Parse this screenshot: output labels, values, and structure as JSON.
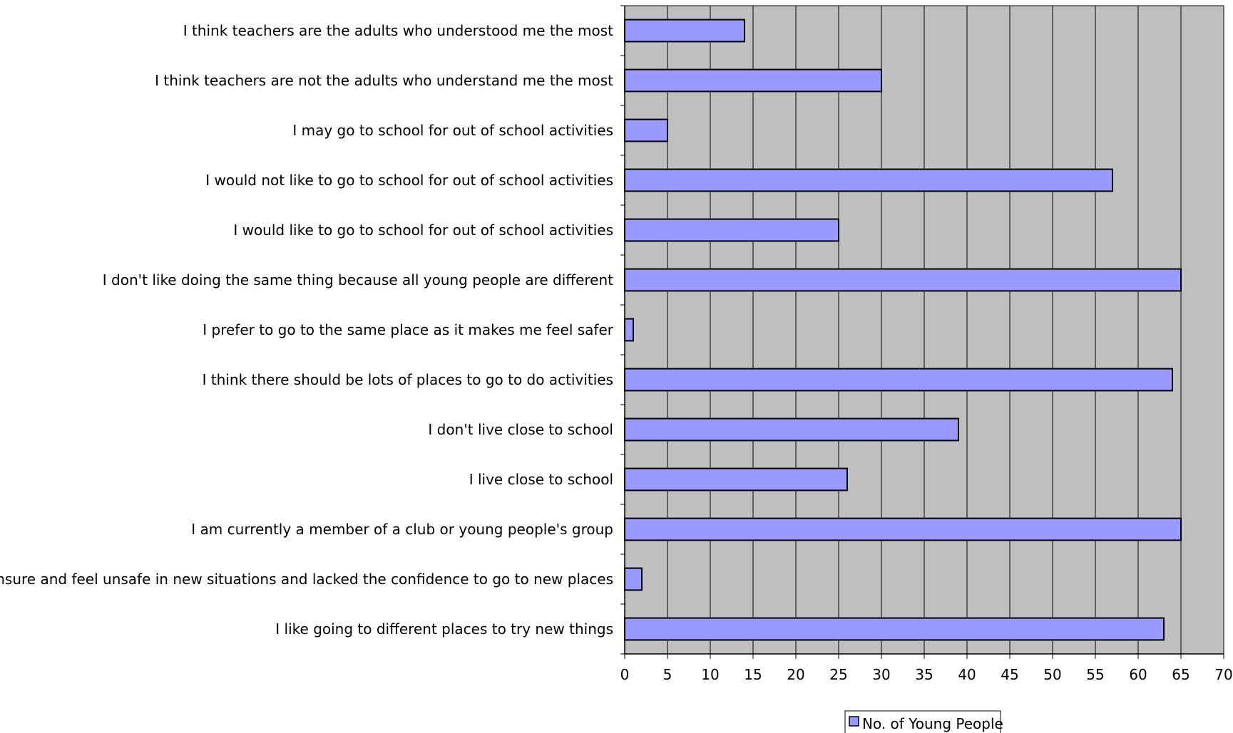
{
  "chart_data": {
    "type": "bar",
    "orientation": "horizontal",
    "title": "",
    "xlabel": "",
    "ylabel": "",
    "xlim": [
      0,
      70
    ],
    "x_ticks": [
      0,
      5,
      10,
      15,
      20,
      25,
      30,
      35,
      40,
      45,
      50,
      55,
      60,
      65,
      70
    ],
    "grid": true,
    "legend_position": "bottom",
    "categories": [
      "I think teachers are the adults who understood me the most",
      "I think teachers are not the adults who understand me the most",
      "I may go to school for out of school activities",
      "I would not like to go to school for out of school activities",
      "I would like to go to school for out of school activities",
      "I don't like doing the same thing because all young people are different",
      "I prefer to go to the same place as it makes me feel safer",
      "I think there should be lots of places to go to do activities",
      "I don't live close to school",
      "I live close to school",
      "I am currently a member of a club or young people's group",
      "I am unsure and feel unsafe in new situations and lacked the confidence to go to new places",
      "I like going to different places to try new things"
    ],
    "series": [
      {
        "name": "No. of Young People",
        "values": [
          14,
          30,
          5,
          57,
          25,
          65,
          1,
          64,
          39,
          26,
          65,
          2,
          63
        ]
      }
    ],
    "colors": {
      "bar_fill": "#9999ff",
      "bar_stroke": "#000000",
      "plot_background": "#c0c0c0",
      "grid": "#000000"
    }
  }
}
